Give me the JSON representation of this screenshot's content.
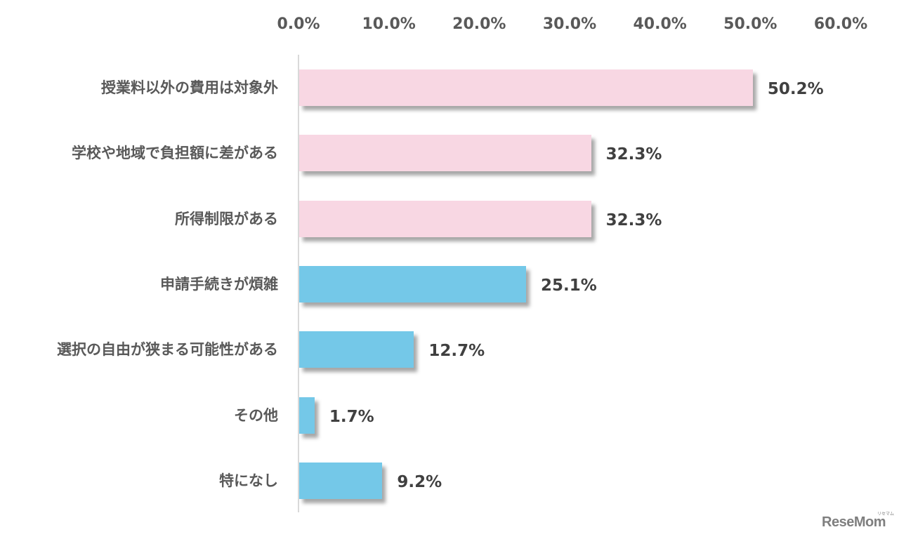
{
  "chart_data": {
    "type": "bar",
    "orientation": "horizontal",
    "title": "",
    "xlabel": "",
    "ylabel": "",
    "xlim": [
      0,
      60
    ],
    "x_ticks": [
      "0.0%",
      "10.0%",
      "20.0%",
      "30.0%",
      "40.0%",
      "50.0%",
      "60.0%"
    ],
    "x_axis_position": "top",
    "grid": false,
    "legend": null,
    "categories": [
      "授業料以外の費用は対象外",
      "学校や地域で負担額に差がある",
      "所得制限がある",
      "申請手続きが煩雑",
      "選択の自由が狭まる可能性がある",
      "その他",
      "特になし"
    ],
    "values": [
      50.2,
      32.3,
      32.3,
      25.1,
      12.7,
      1.7,
      9.2
    ],
    "value_labels": [
      "50.2%",
      "32.3%",
      "32.3%",
      "25.1%",
      "12.7%",
      "1.7%",
      "9.2%"
    ],
    "bar_colors": [
      "#f8d7e3",
      "#f8d7e3",
      "#f8d7e3",
      "#74c8e8",
      "#74c8e8",
      "#74c8e8",
      "#74c8e8"
    ]
  },
  "colors": {
    "highlight_bar": "#f8d7e3",
    "normal_bar": "#74c8e8",
    "text": "#595959",
    "value_text": "#404040"
  },
  "watermark": {
    "logo": "ReseMom",
    "sub": "リセマム"
  }
}
